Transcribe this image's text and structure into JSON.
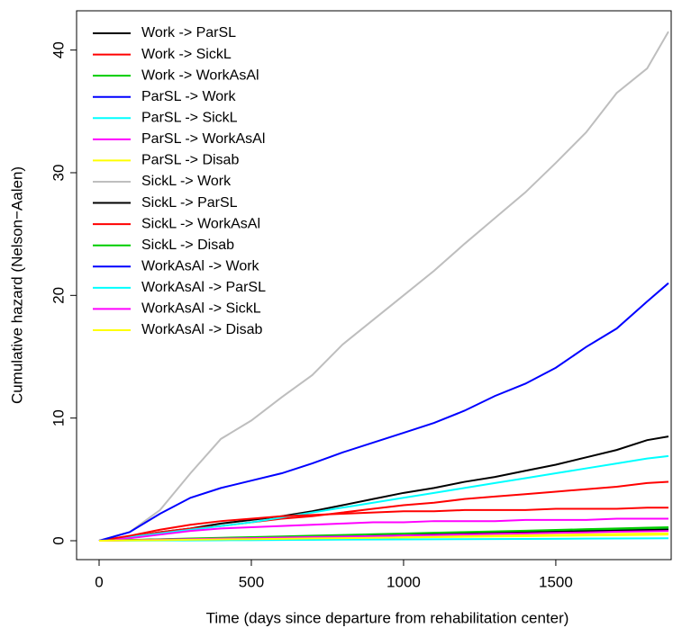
{
  "chart_data": {
    "type": "line",
    "xlabel": "Time (days since departure from rehabilitation center)",
    "ylabel": "Cumulative hazard (Nelson−Aalen)",
    "x": [
      0,
      100,
      200,
      300,
      400,
      500,
      600,
      700,
      800,
      900,
      1000,
      1100,
      1200,
      1300,
      1400,
      1500,
      1600,
      1700,
      1800,
      1870
    ],
    "xlim": [
      -74,
      1879
    ],
    "xticks": [
      0,
      500,
      1000,
      1500
    ],
    "ylim": [
      -1.54,
      43.2
    ],
    "yticks": [
      0,
      10,
      20,
      30,
      40
    ],
    "legend": "top-left",
    "series": [
      {
        "name": "Work -> ParSL",
        "color": "#000000",
        "values": [
          0,
          0.3,
          0.7,
          1.0,
          1.4,
          1.7,
          2.0,
          2.4,
          2.9,
          3.4,
          3.9,
          4.3,
          4.8,
          5.2,
          5.7,
          6.2,
          6.8,
          7.4,
          8.2,
          8.5
        ]
      },
      {
        "name": "Work -> SickL",
        "color": "#ff0000",
        "values": [
          0,
          0.3,
          0.7,
          1.0,
          1.2,
          1.5,
          1.8,
          2.0,
          2.3,
          2.6,
          2.9,
          3.1,
          3.4,
          3.6,
          3.8,
          4.0,
          4.2,
          4.4,
          4.7,
          4.8
        ]
      },
      {
        "name": "Work -> WorkAsAl",
        "color": "#00cd00",
        "values": [
          0,
          0.05,
          0.11,
          0.16,
          0.21,
          0.27,
          0.32,
          0.37,
          0.43,
          0.48,
          0.53,
          0.59,
          0.64,
          0.7,
          0.75,
          0.8,
          0.86,
          0.91,
          0.96,
          1.0
        ]
      },
      {
        "name": "ParSL -> Work",
        "color": "#0000ff",
        "values": [
          0,
          0.05,
          0.1,
          0.14,
          0.19,
          0.24,
          0.29,
          0.34,
          0.39,
          0.43,
          0.48,
          0.53,
          0.58,
          0.63,
          0.67,
          0.72,
          0.77,
          0.82,
          0.87,
          0.9
        ]
      },
      {
        "name": "ParSL -> SickL",
        "color": "#00ffff",
        "values": [
          0,
          0.3,
          0.6,
          0.9,
          1.2,
          1.5,
          1.9,
          2.3,
          2.7,
          3.1,
          3.5,
          3.9,
          4.3,
          4.7,
          5.1,
          5.5,
          5.9,
          6.3,
          6.7,
          6.9
        ]
      },
      {
        "name": "ParSL -> WorkAsAl",
        "color": "#ff00ff",
        "values": [
          0,
          0.2,
          0.5,
          0.8,
          1.0,
          1.1,
          1.2,
          1.3,
          1.4,
          1.5,
          1.5,
          1.6,
          1.6,
          1.6,
          1.7,
          1.7,
          1.7,
          1.8,
          1.8,
          1.8
        ]
      },
      {
        "name": "ParSL -> Disab",
        "color": "#ffff00",
        "values": [
          0,
          0.03,
          0.06,
          0.1,
          0.13,
          0.16,
          0.19,
          0.22,
          0.26,
          0.29,
          0.32,
          0.35,
          0.39,
          0.42,
          0.45,
          0.48,
          0.51,
          0.55,
          0.58,
          0.6
        ]
      },
      {
        "name": "SickL -> Work",
        "color": "#bebebe",
        "values": [
          0,
          0.7,
          2.5,
          5.5,
          8.3,
          9.8,
          11.7,
          13.5,
          16,
          18,
          20,
          22,
          24.2,
          26.3,
          28.4,
          30.8,
          33.3,
          36.5,
          38.5,
          41.5
        ]
      },
      {
        "name": "SickL -> ParSL",
        "color": "#000000",
        "values": [
          0,
          0.05,
          0.1,
          0.14,
          0.19,
          0.24,
          0.29,
          0.34,
          0.39,
          0.43,
          0.48,
          0.53,
          0.58,
          0.63,
          0.67,
          0.72,
          0.77,
          0.82,
          0.87,
          0.9
        ]
      },
      {
        "name": "SickL -> WorkAsAl",
        "color": "#ff0000",
        "values": [
          0,
          0.4,
          0.9,
          1.3,
          1.6,
          1.8,
          2.0,
          2.1,
          2.2,
          2.3,
          2.4,
          2.4,
          2.5,
          2.5,
          2.5,
          2.6,
          2.6,
          2.6,
          2.7,
          2.7
        ]
      },
      {
        "name": "SickL -> Disab",
        "color": "#00cd00",
        "values": [
          0,
          0.06,
          0.12,
          0.18,
          0.24,
          0.29,
          0.35,
          0.41,
          0.47,
          0.53,
          0.59,
          0.65,
          0.71,
          0.76,
          0.82,
          0.88,
          0.94,
          1.0,
          1.06,
          1.1
        ]
      },
      {
        "name": "WorkAsAl -> Work",
        "color": "#0000ff",
        "values": [
          0,
          0.7,
          2.2,
          3.5,
          4.3,
          4.9,
          5.5,
          6.3,
          7.2,
          8.0,
          8.8,
          9.6,
          10.6,
          11.8,
          12.8,
          14.1,
          15.8,
          17.3,
          19.5,
          21
        ]
      },
      {
        "name": "WorkAsAl -> ParSL",
        "color": "#00ffff",
        "values": [
          0,
          0.01,
          0.02,
          0.03,
          0.04,
          0.05,
          0.06,
          0.07,
          0.09,
          0.1,
          0.11,
          0.12,
          0.13,
          0.14,
          0.15,
          0.16,
          0.17,
          0.18,
          0.19,
          0.2
        ]
      },
      {
        "name": "WorkAsAl -> SickL",
        "color": "#ff00ff",
        "values": [
          0,
          0.04,
          0.09,
          0.13,
          0.17,
          0.21,
          0.26,
          0.3,
          0.34,
          0.38,
          0.43,
          0.47,
          0.51,
          0.56,
          0.6,
          0.64,
          0.68,
          0.73,
          0.77,
          0.8
        ]
      },
      {
        "name": "WorkAsAl -> Disab",
        "color": "#ffff00",
        "values": [
          0,
          0.03,
          0.05,
          0.08,
          0.11,
          0.13,
          0.16,
          0.19,
          0.21,
          0.24,
          0.27,
          0.29,
          0.32,
          0.35,
          0.37,
          0.4,
          0.43,
          0.45,
          0.48,
          0.5
        ]
      }
    ]
  }
}
